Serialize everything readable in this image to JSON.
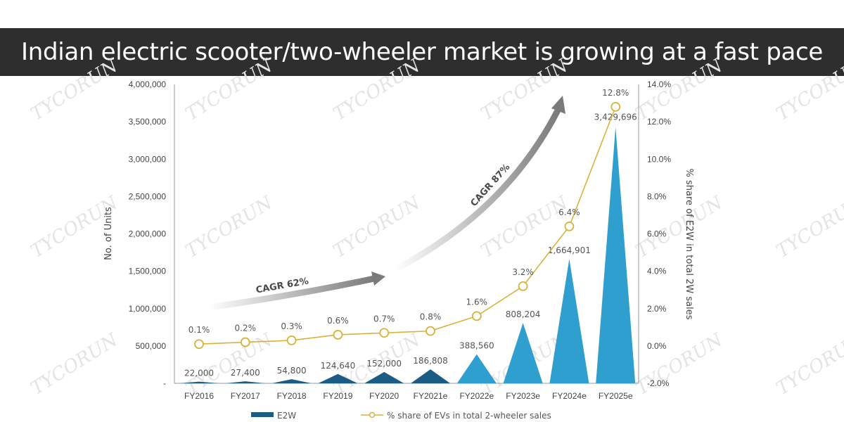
{
  "banner": {
    "title": "Indian electric scooter/two-wheeler market is growing at a fast pace"
  },
  "watermark": "TYCORUN",
  "colors": {
    "bar": "#2f9fcf",
    "bar_dark": "#1b5c86",
    "line": "#d9b23a",
    "banner_bg": "#2e2e2e"
  },
  "chart_data": {
    "type": "bar",
    "categories": [
      "FY2016",
      "FY2017",
      "FY2018",
      "FY2019",
      "FY2020",
      "FY2021e",
      "FY2022e",
      "FY2023e",
      "FY2024e",
      "FY2025e"
    ],
    "series": [
      {
        "name": "E2W",
        "type": "bar",
        "axis": "left",
        "values": [
          22000,
          27400,
          54800,
          124640,
          152000,
          186808,
          388560,
          808204,
          1664901,
          3429696
        ],
        "labels": [
          "22,000",
          "27,400",
          "54,800",
          "124,640",
          "152,000",
          "186,808",
          "388,560",
          "808,204",
          "1,664,901",
          "3,429,696"
        ]
      },
      {
        "name": "% share of EVs in total 2-wheeler sales",
        "type": "line",
        "axis": "right",
        "values": [
          0.1,
          0.2,
          0.3,
          0.6,
          0.7,
          0.8,
          1.6,
          3.2,
          6.4,
          12.8
        ],
        "labels": [
          "0.1%",
          "0.2%",
          "0.3%",
          "0.6%",
          "0.7%",
          "0.8%",
          "1.6%",
          "3.2%",
          "6.4%",
          "12.8%"
        ]
      }
    ],
    "ylabel": "No. of Units",
    "ylabel_right": "% share of E2W in total 2W sales",
    "ylim": [
      0,
      4000000
    ],
    "ylim_right": [
      -2.0,
      14.0
    ],
    "yticks": [
      "-",
      "500,000",
      "1,000,000",
      "1,500,000",
      "2,000,000",
      "2,500,000",
      "3,000,000",
      "3,500,000",
      "4,000,000"
    ],
    "yticks_right": [
      "-2.0%",
      "0.0%",
      "2.0%",
      "4.0%",
      "6.0%",
      "8.0%",
      "10.0%",
      "12.0%",
      "14.0%"
    ],
    "annotations": [
      "CAGR 62%",
      "CAGR 87%"
    ],
    "legend": [
      "E2W",
      "% share of EVs in total 2-wheeler sales"
    ],
    "legend_position": "bottom",
    "grid": false
  }
}
